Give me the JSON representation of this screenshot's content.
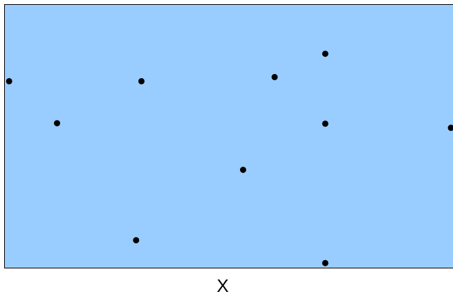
{
  "chart_data": {
    "type": "scatter",
    "title": "",
    "xlabel": "X",
    "ylabel": "",
    "xlim": [
      0,
      10
    ],
    "ylim": [
      0,
      10
    ],
    "grid": false,
    "legend": "none",
    "colors": {
      "plot_background": "#99ccff",
      "marker": "#000000",
      "frame": "#000000"
    },
    "series": [
      {
        "x": [
          0.05,
          1.13,
          3.03,
          2.91,
          6.03,
          5.32,
          7.17,
          7.17,
          10.0,
          7.17
        ],
        "y": [
          7.91,
          6.11,
          7.91,
          1.09,
          8.09,
          4.11,
          9.09,
          6.09,
          5.91,
          0.11
        ]
      }
    ]
  }
}
